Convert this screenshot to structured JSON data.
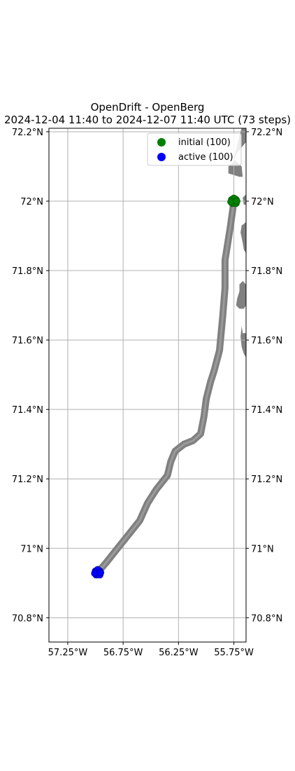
{
  "title": "OpenDrift - OpenBerg",
  "subtitle": "2024-12-04 11:40 to 2024-12-07 11:40 UTC (73 steps)",
  "chart_data": {
    "type": "map-trajectory",
    "lon_range": [
      -57.42,
      -55.64
    ],
    "lat_range": [
      70.73,
      72.21
    ],
    "lon_ticks": [
      -57.25,
      -56.75,
      -56.25,
      -55.75
    ],
    "lon_tick_labels": [
      "57.25°W",
      "56.75°W",
      "56.25°W",
      "55.75°W"
    ],
    "lat_ticks": [
      70.8,
      71.0,
      71.2,
      71.4,
      71.6,
      71.8,
      72.0,
      72.2
    ],
    "lat_tick_labels": [
      "70.8°N",
      "71°N",
      "71.2°N",
      "71.4°N",
      "71.6°N",
      "71.8°N",
      "72°N",
      "72.2°N"
    ],
    "grid": true,
    "legend_position": "top-right",
    "legend": [
      {
        "label": "initial (100)",
        "color": "#008000"
      },
      {
        "label": "active (100)",
        "color": "#0000ff"
      }
    ],
    "trajectory_color": "#808080",
    "land_color": "#808080",
    "initial_position": {
      "lon": -55.75,
      "lat": 72.0
    },
    "final_position": {
      "lon": -56.98,
      "lat": 70.93
    },
    "trajectory": [
      {
        "lon": -55.75,
        "lat": 72.0
      },
      {
        "lon": -55.78,
        "lat": 71.93
      },
      {
        "lon": -55.81,
        "lat": 71.87
      },
      {
        "lon": -55.83,
        "lat": 71.83
      },
      {
        "lon": -55.83,
        "lat": 71.75
      },
      {
        "lon": -55.85,
        "lat": 71.67
      },
      {
        "lon": -55.88,
        "lat": 71.57
      },
      {
        "lon": -55.93,
        "lat": 71.51
      },
      {
        "lon": -55.96,
        "lat": 71.48
      },
      {
        "lon": -56.0,
        "lat": 71.43
      },
      {
        "lon": -56.02,
        "lat": 71.38
      },
      {
        "lon": -56.05,
        "lat": 71.33
      },
      {
        "lon": -56.12,
        "lat": 71.31
      },
      {
        "lon": -56.2,
        "lat": 71.3
      },
      {
        "lon": -56.28,
        "lat": 71.28
      },
      {
        "lon": -56.32,
        "lat": 71.25
      },
      {
        "lon": -56.35,
        "lat": 71.21
      },
      {
        "lon": -56.45,
        "lat": 71.17
      },
      {
        "lon": -56.53,
        "lat": 71.13
      },
      {
        "lon": -56.6,
        "lat": 71.08
      },
      {
        "lon": -56.7,
        "lat": 71.04
      },
      {
        "lon": -56.8,
        "lat": 71.0
      },
      {
        "lon": -56.9,
        "lat": 70.96
      },
      {
        "lon": -56.98,
        "lat": 70.93
      }
    ],
    "land_polygons": [
      [
        [
          -55.64,
          72.21
        ],
        [
          -55.64,
          72.17
        ],
        [
          -55.72,
          72.14
        ],
        [
          -55.75,
          72.12
        ],
        [
          -55.68,
          72.1
        ],
        [
          -55.67,
          72.07
        ],
        [
          -55.7,
          72.07
        ],
        [
          -55.8,
          72.08
        ],
        [
          -55.8,
          72.1
        ],
        [
          -55.76,
          72.11
        ],
        [
          -55.72,
          72.16
        ],
        [
          -55.7,
          72.19
        ],
        [
          -55.68,
          72.21
        ]
      ],
      [
        [
          -55.64,
          72.02
        ],
        [
          -55.67,
          72.01
        ],
        [
          -55.66,
          71.99
        ],
        [
          -55.64,
          71.99
        ]
      ],
      [
        [
          -55.64,
          71.94
        ],
        [
          -55.68,
          71.93
        ],
        [
          -55.69,
          71.91
        ],
        [
          -55.67,
          71.88
        ],
        [
          -55.66,
          71.86
        ],
        [
          -55.64,
          71.85
        ]
      ],
      [
        [
          -55.64,
          71.76
        ],
        [
          -55.67,
          71.77
        ],
        [
          -55.7,
          71.76
        ],
        [
          -55.7,
          71.74
        ],
        [
          -55.72,
          71.72
        ],
        [
          -55.73,
          71.7
        ],
        [
          -55.7,
          71.69
        ],
        [
          -55.66,
          71.69
        ],
        [
          -55.64,
          71.7
        ]
      ],
      [
        [
          -55.64,
          71.62
        ],
        [
          -55.67,
          71.62
        ],
        [
          -55.68,
          71.64
        ],
        [
          -55.69,
          71.61
        ],
        [
          -55.68,
          71.58
        ],
        [
          -55.66,
          71.56
        ],
        [
          -55.64,
          71.55
        ]
      ]
    ]
  }
}
